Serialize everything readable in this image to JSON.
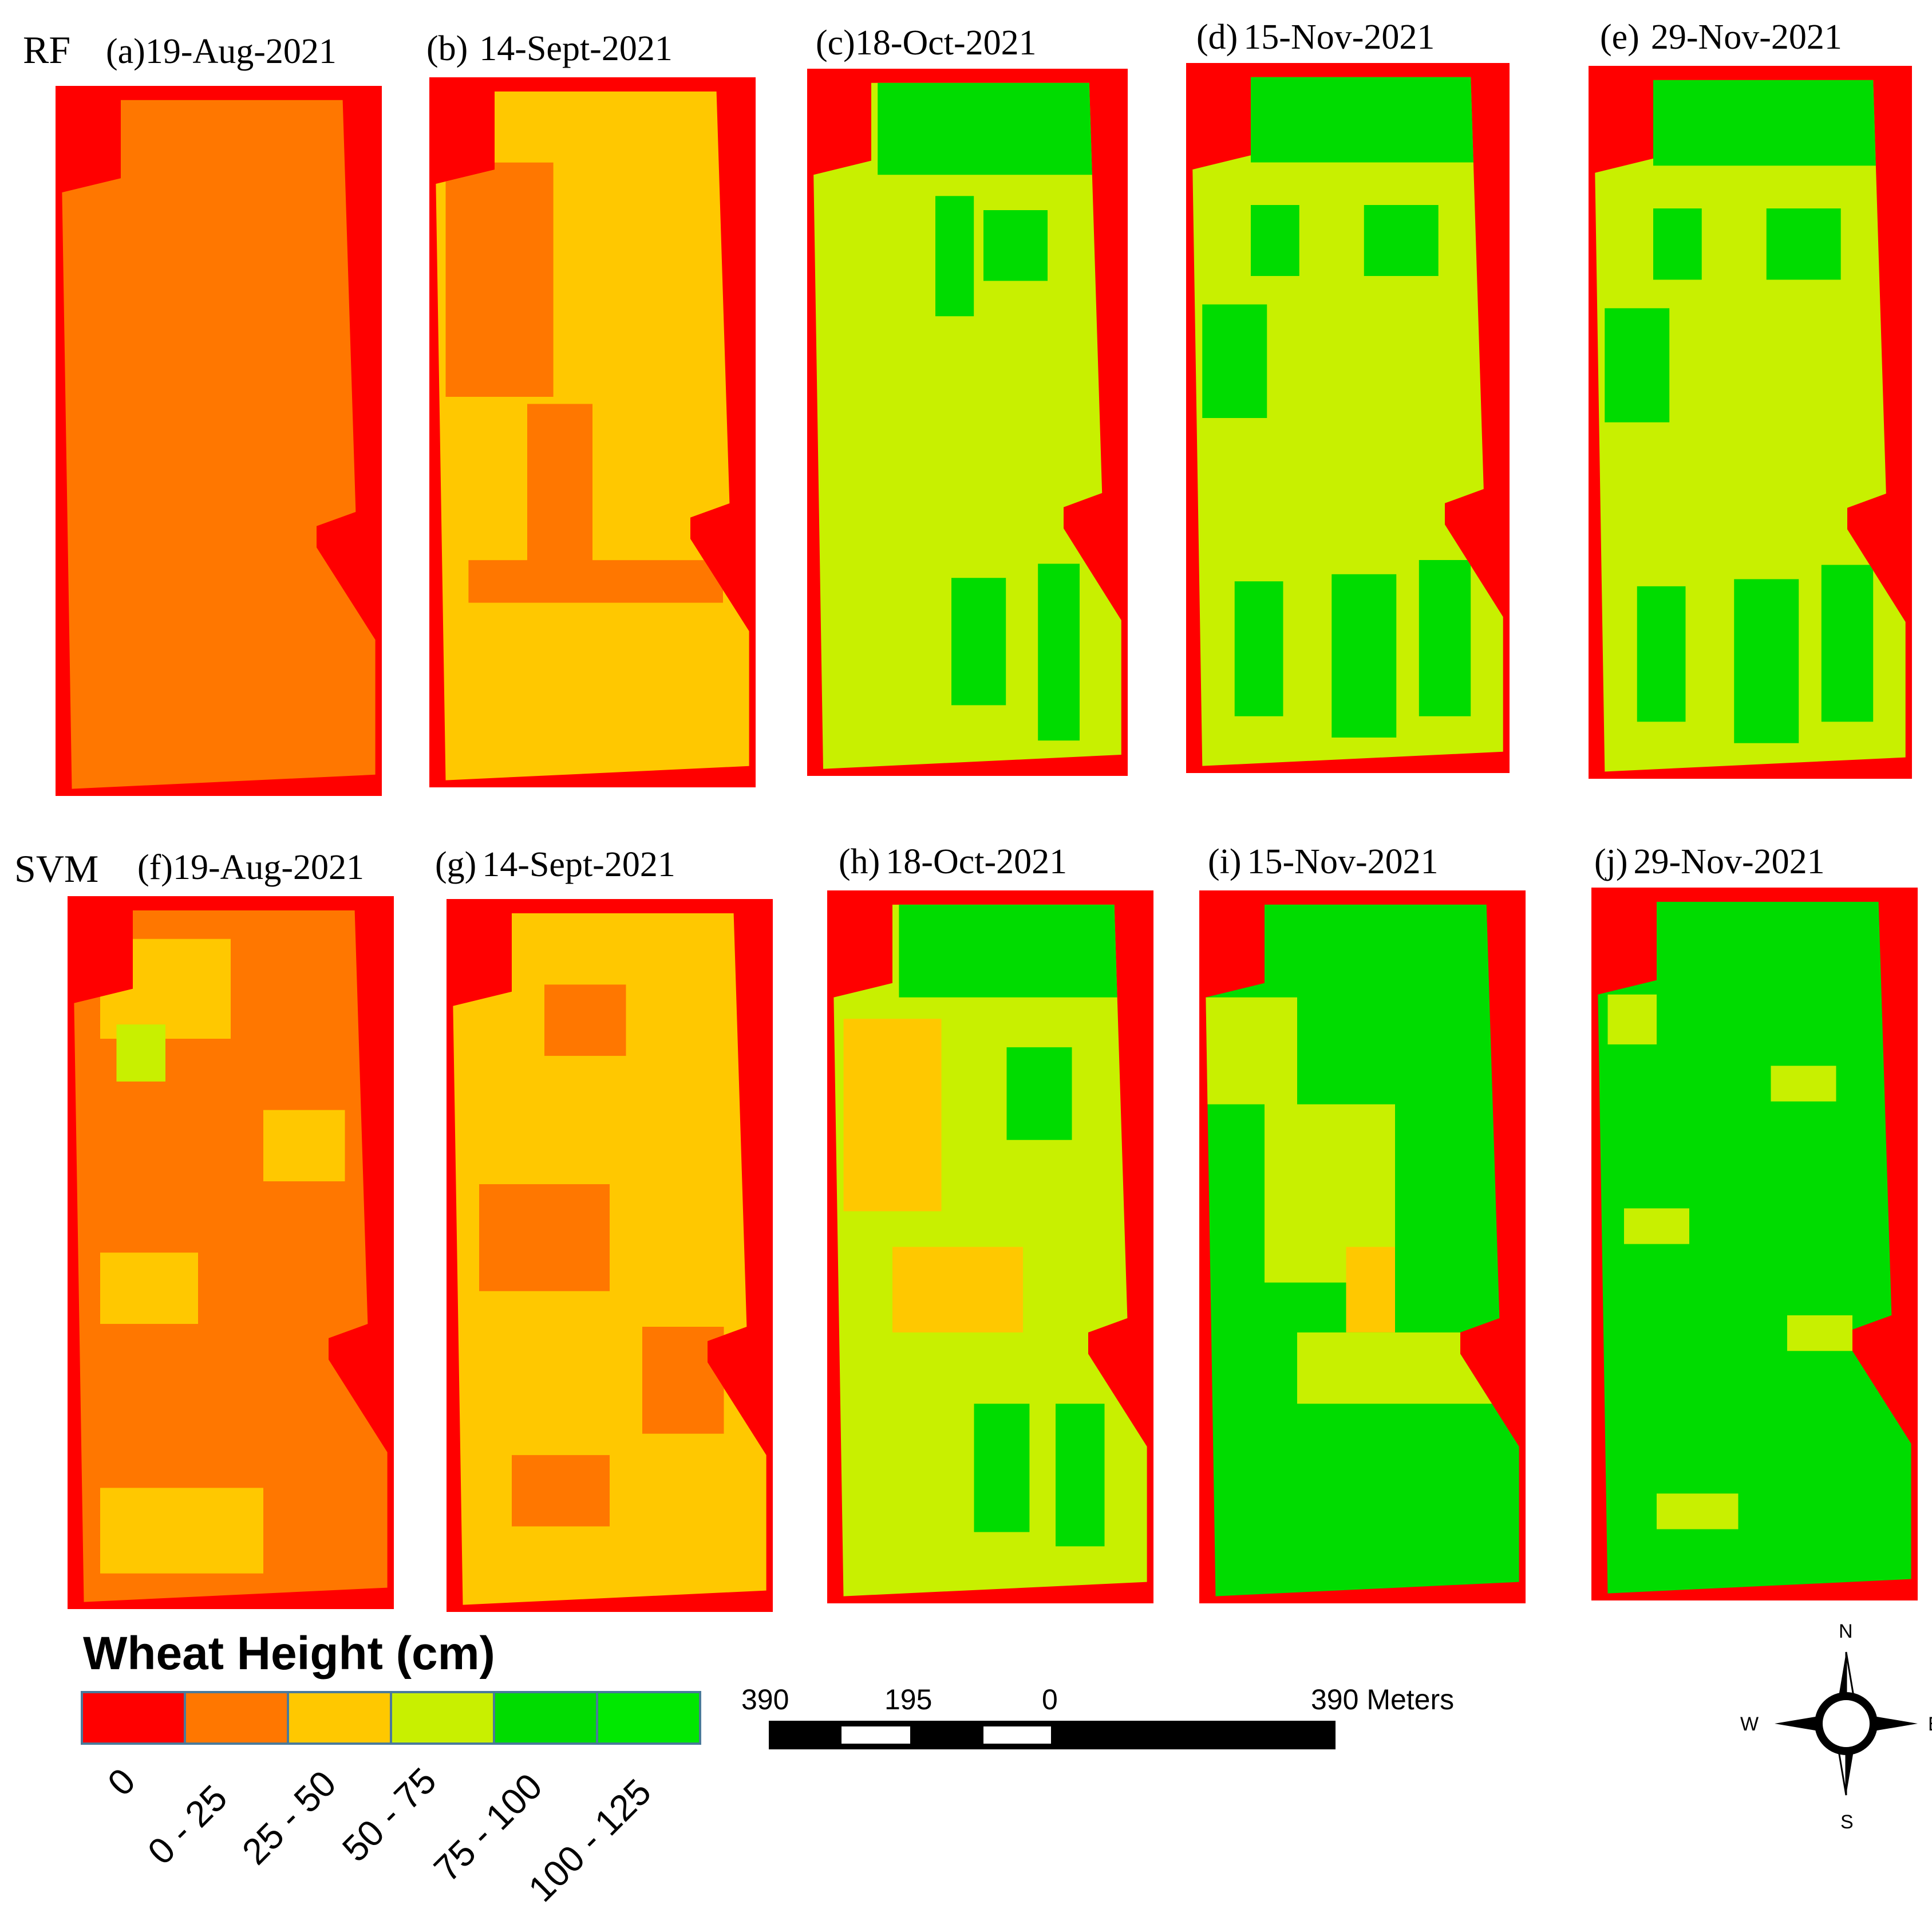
{
  "figure": {
    "rows": [
      {
        "label": "RF",
        "panels": [
          {
            "label": "(a)",
            "date": "19-Aug-2021",
            "map_key": "a"
          },
          {
            "label": "(b)",
            "date": "14-Sept-2021",
            "map_key": "b"
          },
          {
            "label": "(c)",
            "date": "18-Oct-2021",
            "map_key": "c"
          },
          {
            "label": "(d)",
            "date": "15-Nov-2021",
            "map_key": "d"
          },
          {
            "label": "(e)",
            "date": "29-Nov-2021",
            "map_key": "e"
          }
        ]
      },
      {
        "label": "SVM",
        "panels": [
          {
            "label": "(f)",
            "date": "19-Aug-2021",
            "map_key": "f"
          },
          {
            "label": "(g)",
            "date": "14-Sept-2021",
            "map_key": "g"
          },
          {
            "label": "(h)",
            "date": "18-Oct-2021",
            "map_key": "h"
          },
          {
            "label": "(i)",
            "date": "15-Nov-2021",
            "map_key": "i"
          },
          {
            "label": "(j)",
            "date": "29-Nov-2021",
            "map_key": "j"
          }
        ]
      }
    ]
  },
  "legend": {
    "title": "Wheat Height (cm)",
    "classes": [
      {
        "label": "0",
        "color": "#ff0000"
      },
      {
        "label": "0 - 25",
        "color": "#ff7700"
      },
      {
        "label": "25 - 50",
        "color": "#ffc800"
      },
      {
        "label": "50 - 75",
        "color": "#c8f000"
      },
      {
        "label": "75 - 100",
        "color": "#00dc00"
      },
      {
        "label": "100 - 125",
        "color": "#00e800"
      }
    ]
  },
  "scale_bar": {
    "labels": [
      "390",
      "195",
      "0",
      "390 Meters"
    ],
    "units": "Meters"
  },
  "north_arrow": {
    "n": "N",
    "e": "E",
    "s": "S",
    "w": "W"
  },
  "maps": {
    "a": {
      "base": 1,
      "patches": []
    },
    "b": {
      "base": 2,
      "patches": [
        [
          1,
          0.05,
          0.12,
          0.38,
          0.45
        ],
        [
          1,
          0.3,
          0.46,
          0.5,
          0.7
        ],
        [
          1,
          0.12,
          0.68,
          0.9,
          0.74
        ]
      ]
    },
    "c": {
      "base": 3,
      "patches": [
        [
          4,
          0.22,
          0.0,
          1.0,
          0.15
        ],
        [
          4,
          0.4,
          0.18,
          0.52,
          0.35
        ],
        [
          4,
          0.55,
          0.2,
          0.75,
          0.3
        ],
        [
          4,
          0.45,
          0.72,
          0.62,
          0.9
        ],
        [
          4,
          0.72,
          0.7,
          0.85,
          0.95
        ]
      ]
    },
    "d": {
      "base": 3,
      "patches": [
        [
          4,
          0.2,
          0.0,
          1.0,
          0.14
        ],
        [
          4,
          0.2,
          0.2,
          0.35,
          0.3
        ],
        [
          4,
          0.05,
          0.34,
          0.25,
          0.5
        ],
        [
          4,
          0.55,
          0.2,
          0.78,
          0.3
        ],
        [
          4,
          0.15,
          0.73,
          0.3,
          0.92
        ],
        [
          4,
          0.45,
          0.72,
          0.65,
          0.95
        ],
        [
          4,
          0.72,
          0.7,
          0.88,
          0.92
        ]
      ]
    },
    "e": {
      "base": 3,
      "patches": [
        [
          4,
          0.2,
          0.0,
          1.0,
          0.14
        ],
        [
          4,
          0.2,
          0.2,
          0.35,
          0.3
        ],
        [
          4,
          0.05,
          0.34,
          0.25,
          0.5
        ],
        [
          4,
          0.55,
          0.2,
          0.78,
          0.3
        ],
        [
          4,
          0.15,
          0.73,
          0.3,
          0.92
        ],
        [
          4,
          0.45,
          0.72,
          0.65,
          0.95
        ],
        [
          4,
          0.72,
          0.7,
          0.88,
          0.92
        ]
      ]
    },
    "f": {
      "base": 1,
      "patches": [
        [
          2,
          0.1,
          0.06,
          0.5,
          0.2
        ],
        [
          3,
          0.15,
          0.18,
          0.3,
          0.26
        ],
        [
          2,
          0.6,
          0.3,
          0.85,
          0.4
        ],
        [
          2,
          0.1,
          0.5,
          0.4,
          0.6
        ],
        [
          2,
          0.1,
          0.83,
          0.6,
          0.95
        ]
      ]
    },
    "g": {
      "base": 2,
      "patches": [
        [
          1,
          0.3,
          0.12,
          0.55,
          0.22
        ],
        [
          1,
          0.1,
          0.4,
          0.5,
          0.55
        ],
        [
          1,
          0.6,
          0.6,
          0.85,
          0.75
        ],
        [
          1,
          0.2,
          0.78,
          0.5,
          0.88
        ]
      ]
    },
    "h": {
      "base": 3,
      "patches": [
        [
          4,
          0.22,
          0.0,
          1.0,
          0.15
        ],
        [
          2,
          0.05,
          0.18,
          0.35,
          0.45
        ],
        [
          4,
          0.55,
          0.22,
          0.75,
          0.35
        ],
        [
          2,
          0.2,
          0.5,
          0.6,
          0.62
        ],
        [
          4,
          0.45,
          0.72,
          0.62,
          0.9
        ],
        [
          4,
          0.7,
          0.72,
          0.85,
          0.92
        ]
      ]
    },
    "i": {
      "base": 4,
      "patches": [
        [
          3,
          0.0,
          0.15,
          0.3,
          0.3
        ],
        [
          3,
          0.2,
          0.3,
          0.6,
          0.55
        ],
        [
          2,
          0.45,
          0.5,
          0.6,
          0.62
        ],
        [
          3,
          0.3,
          0.62,
          0.9,
          0.72
        ],
        [
          4,
          0.2,
          0.0,
          1.0,
          0.14
        ]
      ]
    },
    "j": {
      "base": 4,
      "patches": [
        [
          3,
          0.05,
          0.15,
          0.2,
          0.22
        ],
        [
          3,
          0.55,
          0.25,
          0.75,
          0.3
        ],
        [
          3,
          0.1,
          0.45,
          0.3,
          0.5
        ],
        [
          3,
          0.6,
          0.6,
          0.8,
          0.65
        ],
        [
          3,
          0.2,
          0.85,
          0.45,
          0.9
        ]
      ]
    }
  }
}
